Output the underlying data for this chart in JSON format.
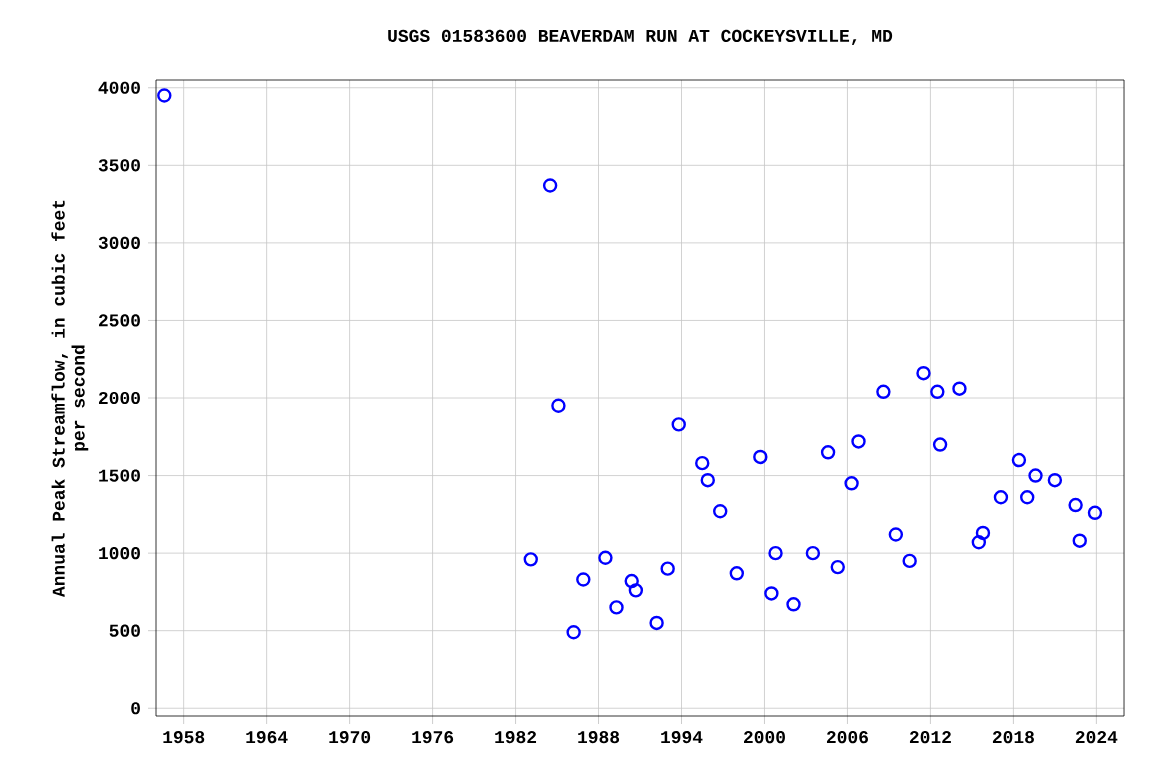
{
  "chart_data": {
    "type": "scatter",
    "title": "USGS 01583600 BEAVERDAM RUN AT COCKEYSVILLE, MD",
    "ylabel": "Annual Peak Streamflow, in cubic feet\nper second",
    "x": [
      1956.6,
      1983.1,
      1984.5,
      1985.1,
      1986.2,
      1986.9,
      1988.5,
      1989.3,
      1990.4,
      1990.7,
      1992.2,
      1993.0,
      1993.8,
      1995.5,
      1995.9,
      1996.8,
      1998.0,
      1999.7,
      2000.5,
      2000.8,
      2002.1,
      2003.5,
      2004.6,
      2005.3,
      2006.3,
      2006.8,
      2008.6,
      2009.5,
      2010.5,
      2011.5,
      2012.5,
      2012.7,
      2014.1,
      2015.5,
      2015.8,
      2017.1,
      2018.4,
      2019.0,
      2019.6,
      2021.0,
      2022.5,
      2022.8,
      2023.9
    ],
    "values": [
      3950,
      960,
      3370,
      1950,
      490,
      830,
      970,
      650,
      820,
      760,
      550,
      900,
      1830,
      1580,
      1470,
      1270,
      870,
      1620,
      740,
      1000,
      670,
      1000,
      1650,
      910,
      1450,
      1720,
      2040,
      1120,
      950,
      2160,
      2040,
      1700,
      2060,
      1070,
      1130,
      1360,
      1600,
      1360,
      1500,
      1470,
      1310,
      1080,
      1260
    ],
    "color": "#0000ff",
    "marker": "circle",
    "grid": true,
    "xlim": [
      1956,
      2026
    ],
    "xticks": [
      1958,
      1964,
      1970,
      1976,
      1982,
      1988,
      1994,
      2000,
      2006,
      2012,
      2018,
      2024
    ],
    "ylim": [
      -50,
      4050
    ],
    "yticks": [
      0,
      500,
      1000,
      1500,
      2000,
      2500,
      3000,
      3500,
      4000
    ]
  }
}
